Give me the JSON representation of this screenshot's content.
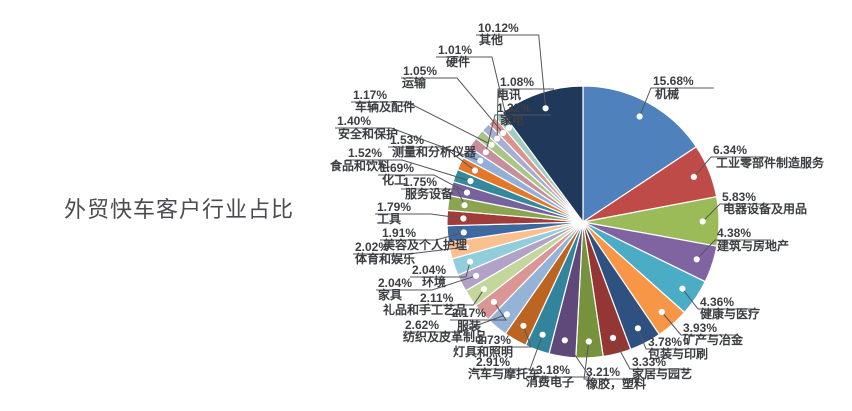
{
  "title": "外贸快车客户行业占比",
  "chart_data": {
    "type": "pie",
    "title": "外贸快车客户行业占比",
    "legend": "none",
    "start_angle_deg": 0,
    "direction": "clockwise",
    "total_pct": 100.0,
    "label_format": "percent above name, leader line with white dot",
    "slices": [
      {
        "label": "机械",
        "value_pct": 15.68,
        "display": "15.68%",
        "color": "#4F81BD"
      },
      {
        "label": "工业零部件制造服务",
        "value_pct": 6.34,
        "display": "6.34%",
        "color": "#BF4B48"
      },
      {
        "label": "电器设备及用品",
        "value_pct": 5.83,
        "display": "5.83%",
        "color": "#9BBB59"
      },
      {
        "label": "建筑与房地产",
        "value_pct": 4.38,
        "display": "4.38%",
        "color": "#8064A2"
      },
      {
        "label": "健康与医疗",
        "value_pct": 4.36,
        "display": "4.36%",
        "color": "#4BACC6"
      },
      {
        "label": "矿产与冶金",
        "value_pct": 3.93,
        "display": "3.93%",
        "color": "#F79646"
      },
      {
        "label": "包装与印刷",
        "value_pct": 3.78,
        "display": "3.78%",
        "color": "#2F5181"
      },
      {
        "label": "家居与园艺",
        "value_pct": 3.33,
        "display": "3.33%",
        "color": "#943634"
      },
      {
        "label": "橡胶，塑料",
        "value_pct": 3.21,
        "display": "3.21%",
        "color": "#76923C"
      },
      {
        "label": "消费电子",
        "value_pct": 3.18,
        "display": "3.18%",
        "color": "#5F497A"
      },
      {
        "label": "汽车与摩托车",
        "value_pct": 2.91,
        "display": "2.91%",
        "color": "#31849B"
      },
      {
        "label": "灯具和照明",
        "value_pct": 2.73,
        "display": "2.73%",
        "color": "#BC6421"
      },
      {
        "label": "纺织及皮革制品",
        "value_pct": 2.62,
        "display": "2.62%",
        "color": "#95B3D7"
      },
      {
        "label": "服装",
        "value_pct": 2.17,
        "display": "2.17%",
        "color": "#D99694"
      },
      {
        "label": "礼品和手工艺品",
        "value_pct": 2.11,
        "display": "2.11%",
        "color": "#C3D69B"
      },
      {
        "label": "家具",
        "value_pct": 2.04,
        "display": "2.04%",
        "color": "#B3A2C7"
      },
      {
        "label": "环境",
        "value_pct": 2.04,
        "display": "2.04%",
        "color": "#92CDDC"
      },
      {
        "label": "体育和娱乐",
        "value_pct": 2.02,
        "display": "2.02%",
        "color": "#FAC090"
      },
      {
        "label": "美容及个人护理",
        "value_pct": 1.91,
        "display": "1.91%",
        "color": "#3E699F"
      },
      {
        "label": "工具",
        "value_pct": 1.79,
        "display": "1.79%",
        "color": "#A03D3A"
      },
      {
        "label": "服务设备",
        "value_pct": 1.75,
        "display": "1.75%",
        "color": "#8CA450"
      },
      {
        "label": "化工",
        "value_pct": 1.69,
        "display": "1.69%",
        "color": "#76629C"
      },
      {
        "label": "食品和饮料",
        "value_pct": 1.52,
        "display": "1.52%",
        "color": "#34899C"
      },
      {
        "label": "测量和分析仪器",
        "value_pct": 1.53,
        "display": "1.53%",
        "color": "#E4782A"
      },
      {
        "label": "安全和保护",
        "value_pct": 1.4,
        "display": "1.40%",
        "color": "#92AFD7"
      },
      {
        "label": "家电",
        "value_pct": 1.32,
        "display": "1.32%",
        "color": "#C78E9B"
      },
      {
        "label": "车辆及配件",
        "value_pct": 1.17,
        "display": "1.17%",
        "color": "#A9C687"
      },
      {
        "label": "电讯",
        "value_pct": 1.08,
        "display": "1.08%",
        "color": "#A6AED3"
      },
      {
        "label": "运输",
        "value_pct": 1.05,
        "display": "1.05%",
        "color": "#D9948E"
      },
      {
        "label": "硬件",
        "value_pct": 1.01,
        "display": "1.01%",
        "color": "#A2CCC0"
      },
      {
        "label": "其他",
        "value_pct": 10.12,
        "display": "10.12%",
        "color": "#20395B"
      }
    ],
    "style_colors": {
      "label_text": "#3d3e42",
      "leader_line": "#55565b",
      "leader_dot": "#ffffff",
      "slice_border": "#ffffff",
      "title_text": "#4b4b51"
    }
  }
}
